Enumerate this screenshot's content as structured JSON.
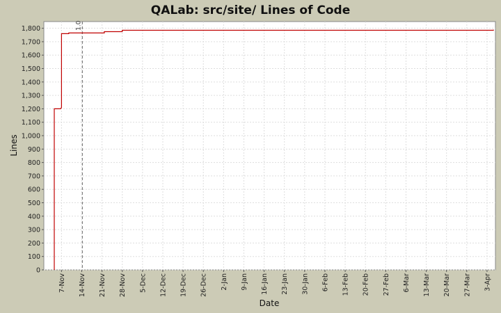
{
  "chart_data": {
    "type": "line",
    "title": "QALab: src/site/ Lines of Code",
    "xlabel": "Date",
    "ylabel": "Lines",
    "ylim": [
      0,
      1850
    ],
    "y_ticks": [
      0,
      100,
      200,
      300,
      400,
      500,
      600,
      700,
      800,
      900,
      1000,
      1100,
      1200,
      1300,
      1400,
      1500,
      1600,
      1700,
      1800
    ],
    "x_tick_labels": [
      "7-Nov",
      "14-Nov",
      "21-Nov",
      "28-Nov",
      "5-Dec",
      "12-Dec",
      "19-Dec",
      "26-Dec",
      "2-Jan",
      "9-Jan",
      "16-Jan",
      "23-Jan",
      "30-Jan",
      "6-Feb",
      "13-Feb",
      "20-Feb",
      "27-Feb",
      "6-Mar",
      "13-Mar",
      "20-Mar",
      "27-Mar",
      "3-Apr"
    ],
    "x_tick_days": [
      0,
      7,
      14,
      21,
      28,
      35,
      42,
      49,
      56,
      63,
      70,
      77,
      84,
      91,
      98,
      105,
      112,
      119,
      126,
      133,
      140,
      147
    ],
    "xlim_days": [
      -6.1,
      149.9
    ],
    "series": [
      {
        "color": "#c00000",
        "step": true,
        "points": [
          {
            "day": -2.5,
            "lines": 0
          },
          {
            "day": -2.5,
            "lines": 1200
          },
          {
            "day": -0.3,
            "lines": 1200
          },
          {
            "day": 0.0,
            "lines": 1210
          },
          {
            "day": 0.0,
            "lines": 1760
          },
          {
            "day": 2.5,
            "lines": 1760
          },
          {
            "day": 2.5,
            "lines": 1765
          },
          {
            "day": 14.8,
            "lines": 1765
          },
          {
            "day": 14.8,
            "lines": 1775
          },
          {
            "day": 21.0,
            "lines": 1775
          },
          {
            "day": 21.0,
            "lines": 1785
          },
          {
            "day": 149.2,
            "lines": 1785
          },
          {
            "day": 149.2,
            "lines": 1790
          }
        ]
      }
    ],
    "markers": [
      {
        "label": "1.0",
        "day": 7.2,
        "style": "dashed",
        "color": "#666666"
      }
    ],
    "grid": true
  }
}
